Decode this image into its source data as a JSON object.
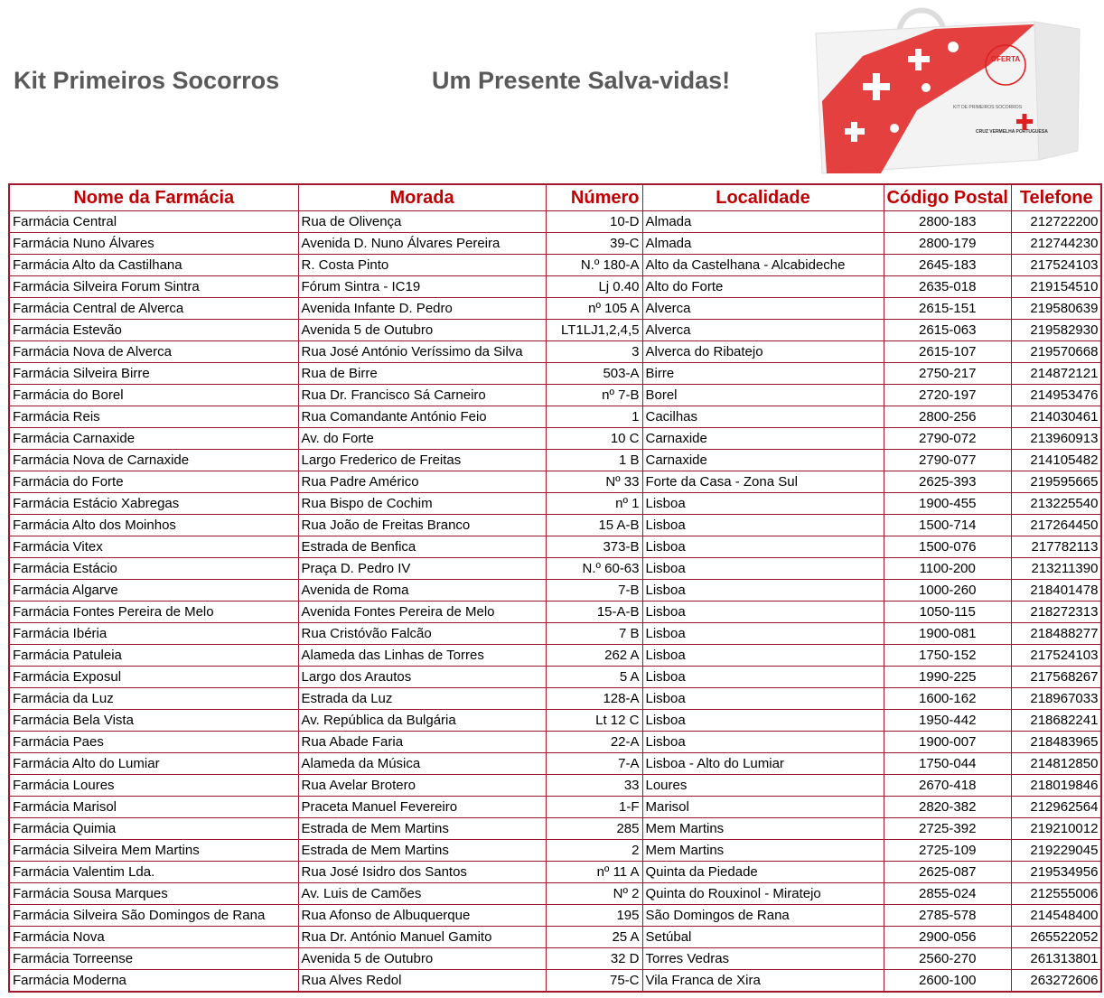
{
  "header": {
    "title": "Kit Primeiros Socorros",
    "subtitle": "Um Presente Salva-vidas!"
  },
  "product_image": {
    "logo_text": [
      "OFERTA",
      "KIT DE PRIMEIROS SOCORROS",
      "CRUZ VERMELHA PORTUGUESA"
    ],
    "accent_color": "#e02020"
  },
  "table": {
    "header_color": "#c00000",
    "border_color": "#a0192a",
    "columns": [
      "Nome da Farmácia",
      "Morada",
      "Número",
      "Localidade",
      "Código Postal",
      "Telefone"
    ],
    "rows": [
      [
        "Farmácia Central",
        "Rua de Olivença",
        "10-D",
        "Almada",
        "2800-183",
        "212722200"
      ],
      [
        "Farmácia Nuno Álvares",
        "Avenida D. Nuno Álvares Pereira",
        "39-C",
        "Almada",
        "2800-179",
        "212744230"
      ],
      [
        "Farmácia Alto da Castilhana",
        "R. Costa Pinto",
        "N.º 180-A",
        "Alto da Castelhana - Alcabideche",
        "2645-183",
        "217524103"
      ],
      [
        "Farmácia Silveira Forum Sintra",
        "Fórum Sintra - IC19",
        "Lj 0.40",
        "Alto do Forte",
        "2635-018",
        "219154510"
      ],
      [
        "Farmácia Central de Alverca",
        "Avenida Infante D. Pedro",
        "nº 105 A",
        "Alverca",
        "2615-151",
        "219580639"
      ],
      [
        "Farmácia Estevão",
        "Avenida 5 de Outubro",
        "LT1LJ1,2,4,5",
        "Alverca",
        "2615-063",
        "219582930"
      ],
      [
        "Farmácia Nova de Alverca",
        "Rua José António Veríssimo da Silva",
        "3",
        "Alverca do Ribatejo",
        "2615-107",
        "219570668"
      ],
      [
        "Farmácia Silveira Birre",
        "Rua de Birre",
        "503-A",
        "Birre",
        "2750-217",
        "214872121"
      ],
      [
        "Farmácia do Borel",
        "Rua Dr. Francisco Sá Carneiro",
        "nº 7-B",
        "Borel",
        "2720-197",
        "214953476"
      ],
      [
        "Farmácia Reis",
        "Rua Comandante António Feio",
        "1",
        "Cacilhas",
        "2800-256",
        "214030461"
      ],
      [
        "Farmácia Carnaxide",
        "Av. do Forte",
        "10 C",
        "Carnaxide",
        "2790-072",
        "213960913"
      ],
      [
        "Farmácia Nova de Carnaxide",
        "Largo Frederico de Freitas",
        "1 B",
        "Carnaxide",
        "2790-077",
        "214105482"
      ],
      [
        "Farmácia do Forte",
        "Rua Padre Américo",
        "Nº 33",
        "Forte da Casa - Zona Sul",
        "2625-393",
        "219595665"
      ],
      [
        "Farmácia Estácio Xabregas",
        "Rua Bispo de Cochim",
        "nº 1",
        "Lisboa",
        "1900-455",
        "213225540"
      ],
      [
        "Farmácia Alto dos Moinhos",
        "Rua João de Freitas Branco",
        "15 A-B",
        "Lisboa",
        "1500-714",
        "217264450"
      ],
      [
        "Farmácia Vitex",
        "Estrada de Benfica",
        "373-B",
        "Lisboa",
        "1500-076",
        "217782113"
      ],
      [
        "Farmácia Estácio",
        "Praça D. Pedro IV",
        "N.º 60-63",
        "Lisboa",
        "1100-200",
        "213211390"
      ],
      [
        "Farmácia Algarve",
        "Avenida de Roma",
        "7-B",
        "Lisboa",
        "1000-260",
        "218401478"
      ],
      [
        "Farmácia Fontes Pereira de Melo",
        "Avenida Fontes Pereira de Melo",
        "15-A-B",
        "Lisboa",
        "1050-115",
        "218272313"
      ],
      [
        "Farmácia Ibéria",
        "Rua Cristóvão Falcão",
        "7 B",
        "Lisboa",
        "1900-081",
        "218488277"
      ],
      [
        "Farmácia Patuleia",
        "Alameda das Linhas de Torres",
        "262 A",
        "Lisboa",
        "1750-152",
        "217524103"
      ],
      [
        "Farmácia Exposul",
        "Largo dos Arautos",
        "5 A",
        "Lisboa",
        "1990-225",
        "217568267"
      ],
      [
        "Farmácia da Luz",
        "Estrada da Luz",
        "128-A",
        "Lisboa",
        "1600-162",
        "218967033"
      ],
      [
        "Farmácia Bela Vista",
        "Av. República da Bulgária",
        "Lt 12 C",
        "Lisboa",
        "1950-442",
        "218682241"
      ],
      [
        "Farmácia Paes",
        "Rua Abade Faria",
        "22-A",
        "Lisboa",
        "1900-007",
        "218483965"
      ],
      [
        "Farmácia Alto do Lumiar",
        "Alameda da Música",
        "7-A",
        "Lisboa - Alto do Lumiar",
        "1750-044",
        "214812850"
      ],
      [
        "Farmácia Loures",
        "Rua Avelar Brotero",
        "33",
        "Loures",
        "2670-418",
        "218019846"
      ],
      [
        "Farmácia Marisol",
        "Praceta Manuel Fevereiro",
        "1-F",
        "Marisol",
        "2820-382",
        "212962564"
      ],
      [
        "Farmácia Quimia",
        "Estrada de Mem Martins",
        "285",
        "Mem Martins",
        "2725-392",
        "219210012"
      ],
      [
        "Farmácia Silveira Mem Martins",
        "Estrada de Mem Martins",
        "2",
        "Mem Martins",
        "2725-109",
        "219229045"
      ],
      [
        "Farmácia Valentim Lda.",
        "Rua José Isidro dos Santos",
        "nº 11 A",
        "Quinta da Piedade",
        "2625-087",
        "219534956"
      ],
      [
        "Farmácia Sousa Marques",
        "Av. Luis de Camões",
        "Nº 2",
        "Quinta do Rouxinol - Miratejo",
        "2855-024",
        "212555006"
      ],
      [
        "Farmácia Silveira São Domingos de Rana",
        "Rua Afonso de Albuquerque",
        "195",
        "São Domingos de Rana",
        "2785-578",
        "214548400"
      ],
      [
        "Farmácia Nova",
        "Rua Dr. António Manuel Gamito",
        "25 A",
        "Setúbal",
        "2900-056",
        "265522052"
      ],
      [
        "Farmácia Torreense",
        "Avenida 5 de Outubro",
        "32 D",
        "Torres Vedras",
        "2560-270",
        "261313801"
      ],
      [
        "Farmácia Moderna",
        "Rua Alves Redol",
        "75-C",
        "Vila Franca de Xira",
        "2600-100",
        "263272606"
      ]
    ]
  }
}
